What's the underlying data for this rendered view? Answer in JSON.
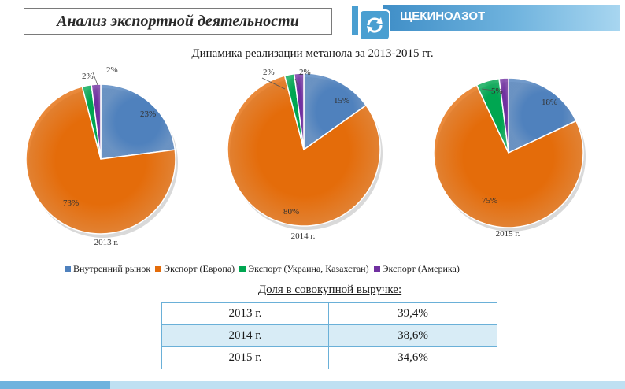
{
  "header": {
    "title": "Анализ экспортной деятельности",
    "brand": "ЩЕКИНОАЗОТ",
    "brand_color": "#4a9fd1"
  },
  "chart_data": {
    "type": "pie",
    "title": "Динамика реализации метанола за 2013-2015 гг.",
    "series_names": [
      "Внутренний рынок",
      "Экспорт (Европа)",
      "Экспорт (Украина, Казахстан)",
      "Экспорт (Америка)"
    ],
    "colors": [
      "#4f81bd",
      "#e46c0a",
      "#00a651",
      "#7030a0"
    ],
    "legend_position": "bottom",
    "pies": [
      {
        "label": "2013 г.",
        "values": [
          23,
          73,
          2,
          2
        ],
        "value_labels": [
          "23%",
          "73%",
          "2%",
          "2%"
        ]
      },
      {
        "label": "2014 г.",
        "values": [
          15,
          80,
          2,
          2
        ],
        "value_labels": [
          "15%",
          "80%",
          "2%",
          "2%"
        ]
      },
      {
        "label": "2015 г.",
        "values": [
          18,
          75,
          5,
          2
        ],
        "value_labels": [
          "18%",
          "75%",
          "5%",
          ""
        ]
      }
    ]
  },
  "share": {
    "title": "Доля в совокупной выручке:",
    "rows": [
      {
        "year": "2013 г.",
        "value": "39,4%"
      },
      {
        "year": "2014 г.",
        "value": "38,6%"
      },
      {
        "year": "2015 г.",
        "value": "34,6%"
      }
    ]
  }
}
